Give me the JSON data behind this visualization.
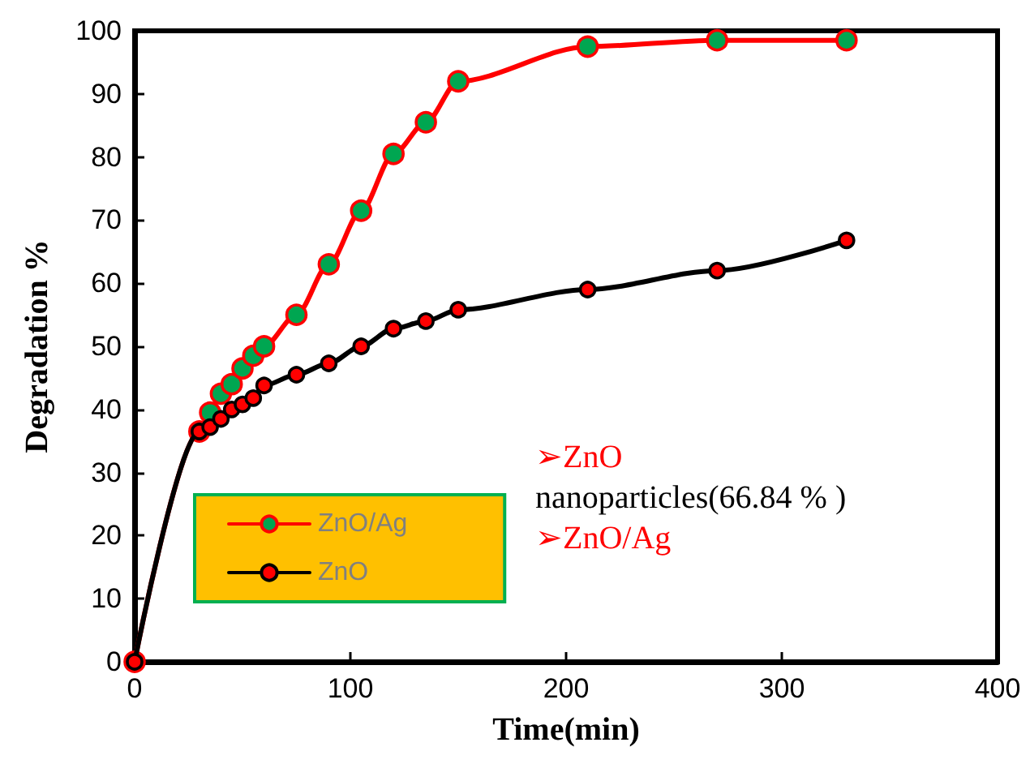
{
  "chart_data": {
    "type": "line",
    "xlabel": "Time(min)",
    "ylabel": "Degradation %",
    "x": [
      0,
      30,
      35,
      40,
      45,
      50,
      55,
      60,
      75,
      90,
      105,
      120,
      135,
      150,
      210,
      270,
      330
    ],
    "series": [
      {
        "name": "ZnO/Ag",
        "color": "#ff0000",
        "values": [
          0,
          36.5,
          39.5,
          42.5,
          44,
          46.5,
          48.5,
          50,
          55,
          63,
          71.5,
          80.5,
          85.5,
          92,
          97.5,
          98.5,
          98.5
        ]
      },
      {
        "name": "ZnO",
        "color": "#000000",
        "values": [
          0,
          36.5,
          37.2,
          38.5,
          40,
          40.8,
          41.8,
          43.8,
          45.5,
          47.3,
          50,
          52.8,
          54,
          55.8,
          59,
          62,
          66.8
        ]
      }
    ],
    "xlim": [
      0,
      400
    ],
    "xticks": [
      0,
      100,
      200,
      300,
      400
    ],
    "ylim": [
      0,
      100
    ],
    "yticks": [
      0,
      10,
      20,
      30,
      40,
      50,
      60,
      70,
      80,
      90,
      100
    ],
    "grid": false,
    "legend": "bottom left",
    "marker": "circle",
    "line_style": "solid",
    "annotations": [
      "➢ZnO",
      "nanoparticles(66.84 % )",
      "➢ZnO/Ag"
    ]
  }
}
